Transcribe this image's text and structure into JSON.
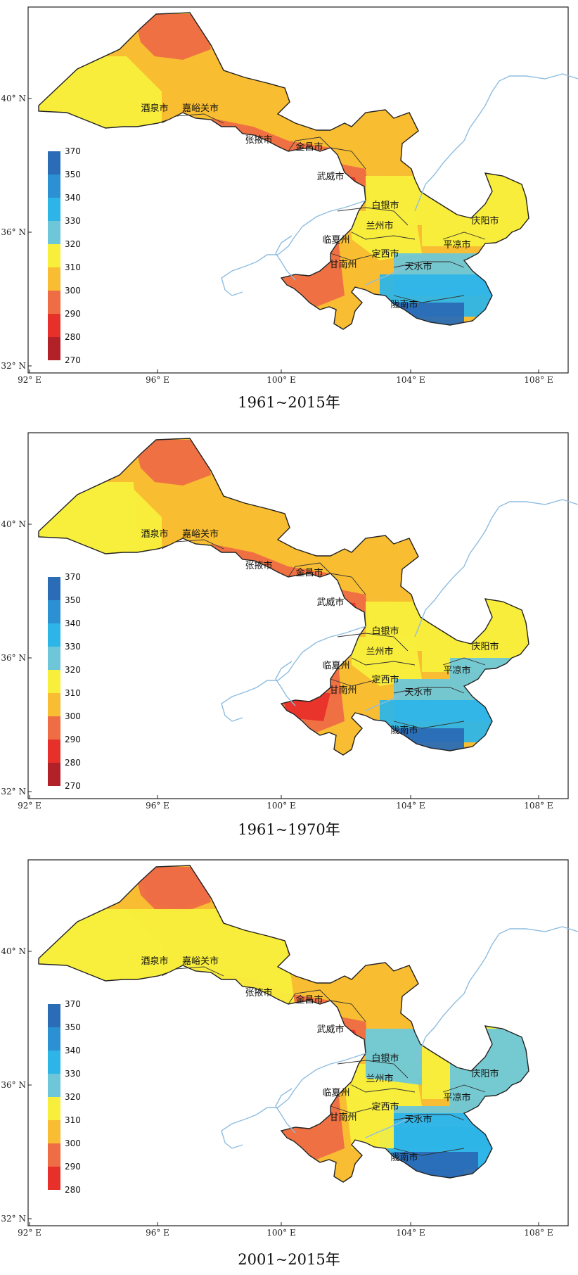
{
  "axes": {
    "x_ticks": [
      "92° E",
      "96° E",
      "100° E",
      "104° E",
      "108° E"
    ],
    "y_ticks": [
      "40° N",
      "36° N",
      "32° N"
    ]
  },
  "cities": [
    "酒泉市",
    "嘉峪关市",
    "张掖市",
    "金昌市",
    "武威市",
    "白银市",
    "兰州市",
    "临夏州",
    "定西市",
    "甘南州",
    "天水市",
    "陇南市",
    "平凉市",
    "庆阳市"
  ],
  "colors": {
    "c270": "#b22028",
    "c280": "#e8302b",
    "c290": "#ee6d45",
    "c300": "#f8bd32",
    "c310": "#f8ef3c",
    "c320": "#6ec7d8",
    "c330": "#2eb5e8",
    "c340": "#2b91d2",
    "c350": "#2a6cb6",
    "river": "#8fbde0",
    "border": "#222222"
  },
  "panels": [
    {
      "title": "1961~2015年",
      "legend": {
        "labels": [
          "370",
          "350",
          "340",
          "330",
          "320",
          "310",
          "300",
          "290",
          "280",
          "270"
        ]
      },
      "variant": 0
    },
    {
      "title": "1961~1970年",
      "legend": {
        "labels": [
          "370",
          "350",
          "340",
          "330",
          "320",
          "310",
          "300",
          "290",
          "280",
          "270"
        ]
      },
      "variant": 1
    },
    {
      "title": "2001~2015年",
      "legend": {
        "labels": [
          "370",
          "350",
          "340",
          "330",
          "320",
          "310",
          "300",
          "290",
          "280"
        ]
      },
      "variant": 2
    }
  ]
}
